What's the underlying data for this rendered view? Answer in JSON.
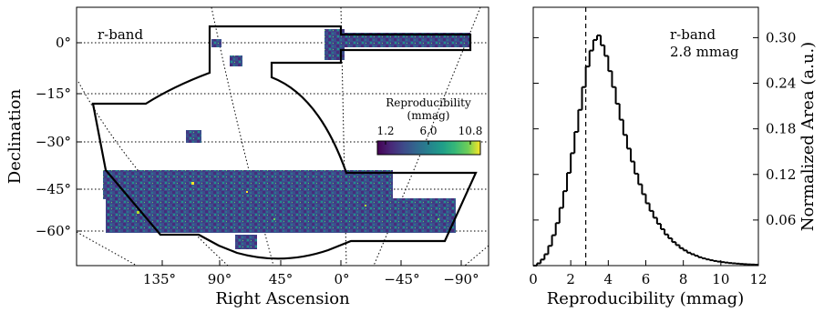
{
  "chart_data": [
    {
      "type": "map",
      "title": "",
      "annotation": "r-band",
      "xlabel": "Right Ascension",
      "ylabel": "Declination",
      "x_ticks": [
        {
          "value": 135,
          "label": "135°"
        },
        {
          "value": 90,
          "label": "90°"
        },
        {
          "value": 45,
          "label": "45°"
        },
        {
          "value": 0,
          "label": "0°"
        },
        {
          "value": -45,
          "label": "−45°"
        },
        {
          "value": -90,
          "label": "−90°"
        }
      ],
      "y_ticks": [
        {
          "value": 0,
          "label": "0°"
        },
        {
          "value": -15,
          "label": "−15°"
        },
        {
          "value": -30,
          "label": "−30°"
        },
        {
          "value": -45,
          "label": "−45°"
        },
        {
          "value": -60,
          "label": "−60°"
        }
      ],
      "colorbar": {
        "title_line1": "Reproducibility",
        "title_line2": "(mmag)",
        "range": [
          0,
          12
        ],
        "ticks": [
          {
            "value": 1.2,
            "label": "1.2"
          },
          {
            "value": 6.0,
            "label": "6.0"
          },
          {
            "value": 10.8,
            "label": "10.8"
          }
        ],
        "colormap": "viridis"
      },
      "footprint_regions": [
        {
          "name": "equatorial stripe",
          "ra": [
            -95,
            5
          ],
          "dec": [
            -2,
            2
          ]
        },
        {
          "name": "main southern region",
          "ra": [
            -85,
            150
          ],
          "dec": [
            -62,
            -39
          ]
        }
      ]
    },
    {
      "type": "histogram",
      "title": "",
      "annotation_line1": "r-band",
      "annotation_line2": "2.8 mmag",
      "xlabel": "Reproducibility (mmag)",
      "ylabel": "Normalized Area (a.u.)",
      "xlim": [
        0,
        12
      ],
      "ylim": [
        0,
        0.34
      ],
      "x_ticks": [
        0,
        2,
        4,
        6,
        8,
        10,
        12
      ],
      "y_ticks": [
        0.06,
        0.12,
        0.18,
        0.24,
        0.3
      ],
      "y_tick_labels": [
        "0.06",
        "0.12",
        "0.18",
        "0.24",
        "0.30"
      ],
      "median": 2.8,
      "bin_width": 0.2,
      "values": [
        0.0,
        0.003,
        0.008,
        0.015,
        0.026,
        0.04,
        0.056,
        0.076,
        0.098,
        0.122,
        0.148,
        0.176,
        0.205,
        0.235,
        0.262,
        0.283,
        0.297,
        0.303,
        0.29,
        0.276,
        0.256,
        0.235,
        0.213,
        0.192,
        0.172,
        0.154,
        0.137,
        0.121,
        0.107,
        0.094,
        0.082,
        0.072,
        0.063,
        0.055,
        0.048,
        0.041,
        0.036,
        0.031,
        0.027,
        0.023,
        0.02,
        0.017,
        0.015,
        0.013,
        0.011,
        0.0095,
        0.0082,
        0.0071,
        0.0061,
        0.0053,
        0.0046,
        0.004,
        0.0034,
        0.003,
        0.0026,
        0.0022,
        0.0019,
        0.0016,
        0.0014,
        0.0012
      ]
    }
  ]
}
